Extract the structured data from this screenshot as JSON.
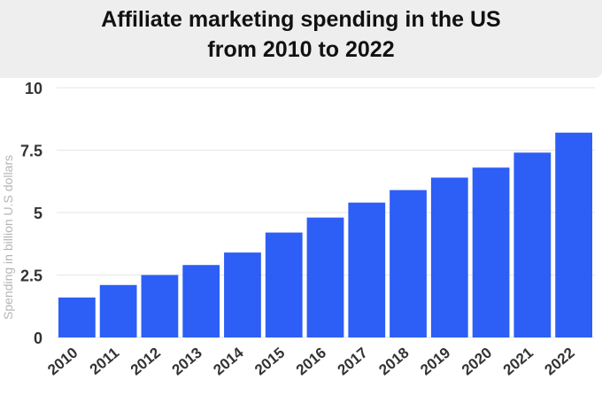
{
  "title": {
    "line1": "Affiliate marketing spending in the US",
    "line2": "from 2010 to 2022"
  },
  "colors": {
    "bar": "#2d5ef5",
    "grid": "#e6e6e6",
    "tick": "#333333",
    "axis_label": "#b5b5b5",
    "title_bg": "#eeeeee"
  },
  "chart_data": {
    "type": "bar",
    "title": "Affiliate marketing spending in the US from 2010 to 2022",
    "xlabel": "",
    "ylabel": "Spending in billion U.S dollars",
    "categories": [
      "2010",
      "2011",
      "2012",
      "2013",
      "2014",
      "2015",
      "2016",
      "2017",
      "2018",
      "2019",
      "2020",
      "2021",
      "2022"
    ],
    "values": [
      1.6,
      2.1,
      2.5,
      2.9,
      3.4,
      4.2,
      4.8,
      5.4,
      5.9,
      6.4,
      6.8,
      7.4,
      8.2
    ],
    "yticks": [
      0,
      2.5,
      5,
      7.5,
      10
    ],
    "ytick_labels": [
      "0",
      "2.5",
      "5",
      "7.5",
      "10"
    ],
    "ylim": [
      0,
      10
    ],
    "grid": true
  }
}
